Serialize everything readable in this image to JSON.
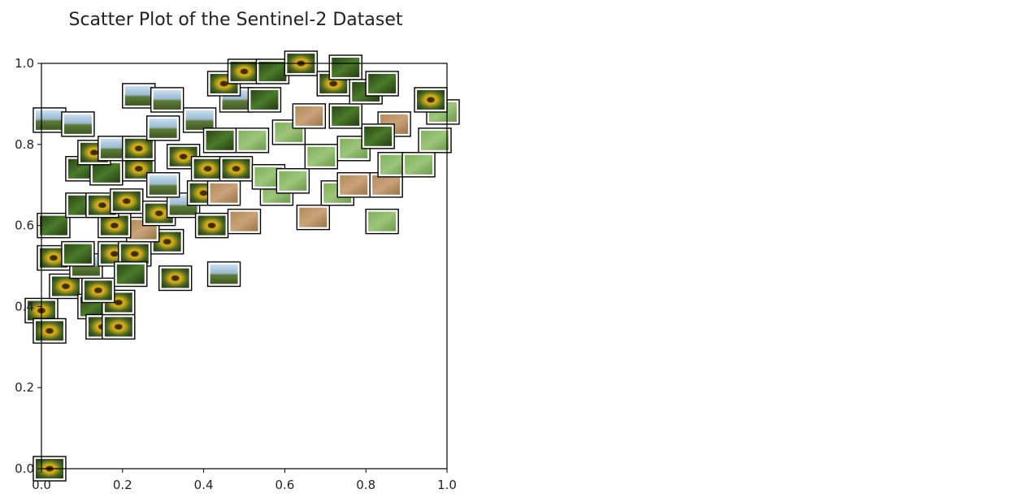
{
  "chart_data": {
    "type": "scatter",
    "title": "Scatter Plot of the Sentinel-2 Dataset",
    "xlabel": "",
    "ylabel": "",
    "xlim": [
      0.0,
      1.0
    ],
    "ylim": [
      0.0,
      1.0
    ],
    "grid": false,
    "marker": "image-thumbnail",
    "x_ticks": [
      "0.0",
      "0.2",
      "0.4",
      "0.6",
      "0.8",
      "1.0"
    ],
    "y_ticks": [
      "0.0",
      "0.2",
      "0.4",
      "0.6",
      "0.8",
      "1.0"
    ],
    "points": [
      {
        "x": 0.02,
        "y": 0.0,
        "thumb": "sunflower"
      },
      {
        "x": 0.0,
        "y": 0.39,
        "thumb": "sunflower"
      },
      {
        "x": 0.02,
        "y": 0.34,
        "thumb": "sunflower"
      },
      {
        "x": 0.06,
        "y": 0.45,
        "thumb": "sunflower"
      },
      {
        "x": 0.03,
        "y": 0.52,
        "thumb": "sunflower"
      },
      {
        "x": 0.03,
        "y": 0.6,
        "thumb": "green"
      },
      {
        "x": 0.02,
        "y": 0.86,
        "thumb": "sky"
      },
      {
        "x": 0.09,
        "y": 0.85,
        "thumb": "sky"
      },
      {
        "x": 0.13,
        "y": 0.4,
        "thumb": "green"
      },
      {
        "x": 0.15,
        "y": 0.35,
        "thumb": "sunflower"
      },
      {
        "x": 0.19,
        "y": 0.35,
        "thumb": "sunflower"
      },
      {
        "x": 0.19,
        "y": 0.41,
        "thumb": "sunflower"
      },
      {
        "x": 0.14,
        "y": 0.44,
        "thumb": "sunflower"
      },
      {
        "x": 0.11,
        "y": 0.5,
        "thumb": "sky"
      },
      {
        "x": 0.09,
        "y": 0.53,
        "thumb": "green"
      },
      {
        "x": 0.18,
        "y": 0.53,
        "thumb": "sunflower"
      },
      {
        "x": 0.23,
        "y": 0.53,
        "thumb": "sunflower"
      },
      {
        "x": 0.22,
        "y": 0.48,
        "thumb": "green"
      },
      {
        "x": 0.31,
        "y": 0.56,
        "thumb": "sunflower"
      },
      {
        "x": 0.33,
        "y": 0.47,
        "thumb": "sunflower"
      },
      {
        "x": 0.45,
        "y": 0.48,
        "thumb": "sky"
      },
      {
        "x": 0.25,
        "y": 0.59,
        "thumb": "soil"
      },
      {
        "x": 0.18,
        "y": 0.6,
        "thumb": "sunflower"
      },
      {
        "x": 0.1,
        "y": 0.65,
        "thumb": "green"
      },
      {
        "x": 0.15,
        "y": 0.65,
        "thumb": "sunflower"
      },
      {
        "x": 0.21,
        "y": 0.66,
        "thumb": "sunflower"
      },
      {
        "x": 0.29,
        "y": 0.63,
        "thumb": "sunflower"
      },
      {
        "x": 0.35,
        "y": 0.65,
        "thumb": "sky"
      },
      {
        "x": 0.42,
        "y": 0.6,
        "thumb": "sunflower"
      },
      {
        "x": 0.5,
        "y": 0.61,
        "thumb": "soil"
      },
      {
        "x": 0.67,
        "y": 0.62,
        "thumb": "soil"
      },
      {
        "x": 0.84,
        "y": 0.61,
        "thumb": "grass"
      },
      {
        "x": 0.1,
        "y": 0.74,
        "thumb": "green"
      },
      {
        "x": 0.16,
        "y": 0.73,
        "thumb": "green"
      },
      {
        "x": 0.24,
        "y": 0.74,
        "thumb": "sunflower"
      },
      {
        "x": 0.3,
        "y": 0.7,
        "thumb": "sky"
      },
      {
        "x": 0.4,
        "y": 0.68,
        "thumb": "sunflower"
      },
      {
        "x": 0.45,
        "y": 0.68,
        "thumb": "soil"
      },
      {
        "x": 0.58,
        "y": 0.68,
        "thumb": "grass"
      },
      {
        "x": 0.73,
        "y": 0.68,
        "thumb": "grass"
      },
      {
        "x": 0.77,
        "y": 0.7,
        "thumb": "soil"
      },
      {
        "x": 0.85,
        "y": 0.7,
        "thumb": "soil"
      },
      {
        "x": 0.13,
        "y": 0.78,
        "thumb": "sunflower"
      },
      {
        "x": 0.18,
        "y": 0.79,
        "thumb": "sky"
      },
      {
        "x": 0.24,
        "y": 0.79,
        "thumb": "sunflower"
      },
      {
        "x": 0.35,
        "y": 0.77,
        "thumb": "sunflower"
      },
      {
        "x": 0.41,
        "y": 0.74,
        "thumb": "sunflower"
      },
      {
        "x": 0.48,
        "y": 0.74,
        "thumb": "sunflower"
      },
      {
        "x": 0.56,
        "y": 0.72,
        "thumb": "grass"
      },
      {
        "x": 0.62,
        "y": 0.71,
        "thumb": "grass"
      },
      {
        "x": 0.69,
        "y": 0.77,
        "thumb": "grass"
      },
      {
        "x": 0.77,
        "y": 0.79,
        "thumb": "grass"
      },
      {
        "x": 0.87,
        "y": 0.75,
        "thumb": "grass"
      },
      {
        "x": 0.93,
        "y": 0.75,
        "thumb": "grass"
      },
      {
        "x": 0.97,
        "y": 0.81,
        "thumb": "grass"
      },
      {
        "x": 0.99,
        "y": 0.88,
        "thumb": "grass"
      },
      {
        "x": 0.96,
        "y": 0.91,
        "thumb": "sunflower"
      },
      {
        "x": 0.87,
        "y": 0.85,
        "thumb": "soil"
      },
      {
        "x": 0.83,
        "y": 0.82,
        "thumb": "green"
      },
      {
        "x": 0.3,
        "y": 0.84,
        "thumb": "sky"
      },
      {
        "x": 0.39,
        "y": 0.86,
        "thumb": "sky"
      },
      {
        "x": 0.44,
        "y": 0.81,
        "thumb": "green"
      },
      {
        "x": 0.52,
        "y": 0.81,
        "thumb": "grass"
      },
      {
        "x": 0.61,
        "y": 0.83,
        "thumb": "grass"
      },
      {
        "x": 0.66,
        "y": 0.87,
        "thumb": "soil"
      },
      {
        "x": 0.75,
        "y": 0.87,
        "thumb": "green"
      },
      {
        "x": 0.24,
        "y": 0.92,
        "thumb": "sky"
      },
      {
        "x": 0.31,
        "y": 0.91,
        "thumb": "sky"
      },
      {
        "x": 0.48,
        "y": 0.91,
        "thumb": "sky"
      },
      {
        "x": 0.55,
        "y": 0.91,
        "thumb": "green"
      },
      {
        "x": 0.45,
        "y": 0.95,
        "thumb": "sunflower"
      },
      {
        "x": 0.5,
        "y": 0.98,
        "thumb": "sunflower"
      },
      {
        "x": 0.57,
        "y": 0.98,
        "thumb": "green"
      },
      {
        "x": 0.64,
        "y": 1.0,
        "thumb": "sunflower"
      },
      {
        "x": 0.72,
        "y": 0.95,
        "thumb": "sunflower"
      },
      {
        "x": 0.75,
        "y": 0.99,
        "thumb": "green"
      },
      {
        "x": 0.8,
        "y": 0.93,
        "thumb": "green"
      },
      {
        "x": 0.84,
        "y": 0.95,
        "thumb": "green"
      }
    ]
  }
}
